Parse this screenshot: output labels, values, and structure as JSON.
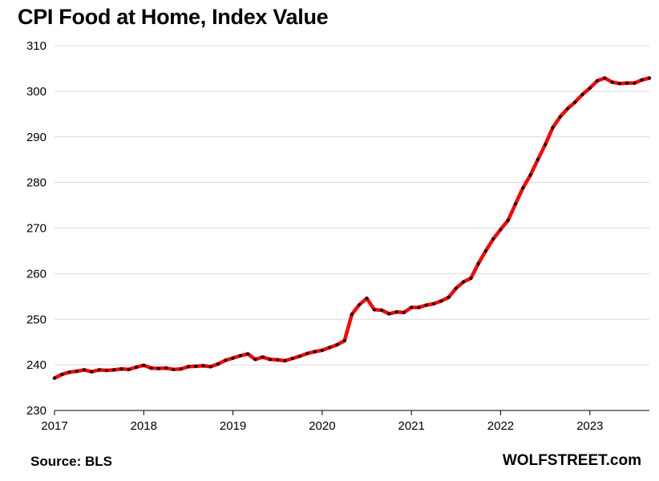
{
  "colors": {
    "line": "#ff0000",
    "marker": "#000000",
    "grid": "#d9d9d9",
    "axis": "#000000"
  },
  "chart_data": {
    "type": "line",
    "title": "CPI Food at Home, Index Value",
    "xlabel": "",
    "ylabel": "",
    "ylim": [
      230,
      310
    ],
    "xlim": [
      2017.0,
      2023.667
    ],
    "y_ticks": [
      230,
      240,
      250,
      260,
      270,
      280,
      290,
      300,
      310
    ],
    "x_ticks": [
      2017,
      2018,
      2019,
      2020,
      2021,
      2022,
      2023
    ],
    "x_tick_labels": [
      "2017",
      "2018",
      "2019",
      "2020",
      "2021",
      "2022",
      "2023"
    ],
    "grid": "horizontal",
    "legend": "none",
    "series": [
      {
        "name": "",
        "x": [
          "2017-01",
          "2017-02",
          "2017-03",
          "2017-04",
          "2017-05",
          "2017-06",
          "2017-07",
          "2017-08",
          "2017-09",
          "2017-10",
          "2017-11",
          "2017-12",
          "2018-01",
          "2018-02",
          "2018-03",
          "2018-04",
          "2018-05",
          "2018-06",
          "2018-07",
          "2018-08",
          "2018-09",
          "2018-10",
          "2018-11",
          "2018-12",
          "2019-01",
          "2019-02",
          "2019-03",
          "2019-04",
          "2019-05",
          "2019-06",
          "2019-07",
          "2019-08",
          "2019-09",
          "2019-10",
          "2019-11",
          "2019-12",
          "2020-01",
          "2020-02",
          "2020-03",
          "2020-04",
          "2020-05",
          "2020-06",
          "2020-07",
          "2020-08",
          "2020-09",
          "2020-10",
          "2020-11",
          "2020-12",
          "2021-01",
          "2021-02",
          "2021-03",
          "2021-04",
          "2021-05",
          "2021-06",
          "2021-07",
          "2021-08",
          "2021-09",
          "2021-10",
          "2021-11",
          "2021-12",
          "2022-01",
          "2022-02",
          "2022-03",
          "2022-04",
          "2022-05",
          "2022-06",
          "2022-07",
          "2022-08",
          "2022-09",
          "2022-10",
          "2022-11",
          "2022-12",
          "2023-01",
          "2023-02",
          "2023-03",
          "2023-04",
          "2023-05",
          "2023-06",
          "2023-07",
          "2023-08",
          "2023-09"
        ],
        "values": [
          237.1,
          237.9,
          238.4,
          238.6,
          238.9,
          238.5,
          238.9,
          238.8,
          238.9,
          239.1,
          239.0,
          239.5,
          239.9,
          239.3,
          239.2,
          239.3,
          239.0,
          239.1,
          239.6,
          239.7,
          239.8,
          239.6,
          240.2,
          241.0,
          241.5,
          242.0,
          242.4,
          241.2,
          241.7,
          241.2,
          241.1,
          240.9,
          241.4,
          241.9,
          242.5,
          242.9,
          243.2,
          243.8,
          244.4,
          245.3,
          251.1,
          253.2,
          254.6,
          252.1,
          252.0,
          251.2,
          251.6,
          251.5,
          252.6,
          252.6,
          253.1,
          253.4,
          254.0,
          254.8,
          256.8,
          258.2,
          259.0,
          262.2,
          265.0,
          267.6,
          269.7,
          271.7,
          275.3,
          278.8,
          281.6,
          285.0,
          288.3,
          292.0,
          294.4,
          296.2,
          297.6,
          299.3,
          300.7,
          302.3,
          302.9,
          302.0,
          301.7,
          301.8,
          301.8,
          302.5,
          302.9
        ]
      }
    ]
  },
  "footer": {
    "source": "Source: BLS",
    "brand": "WOLFSTREET.com"
  }
}
